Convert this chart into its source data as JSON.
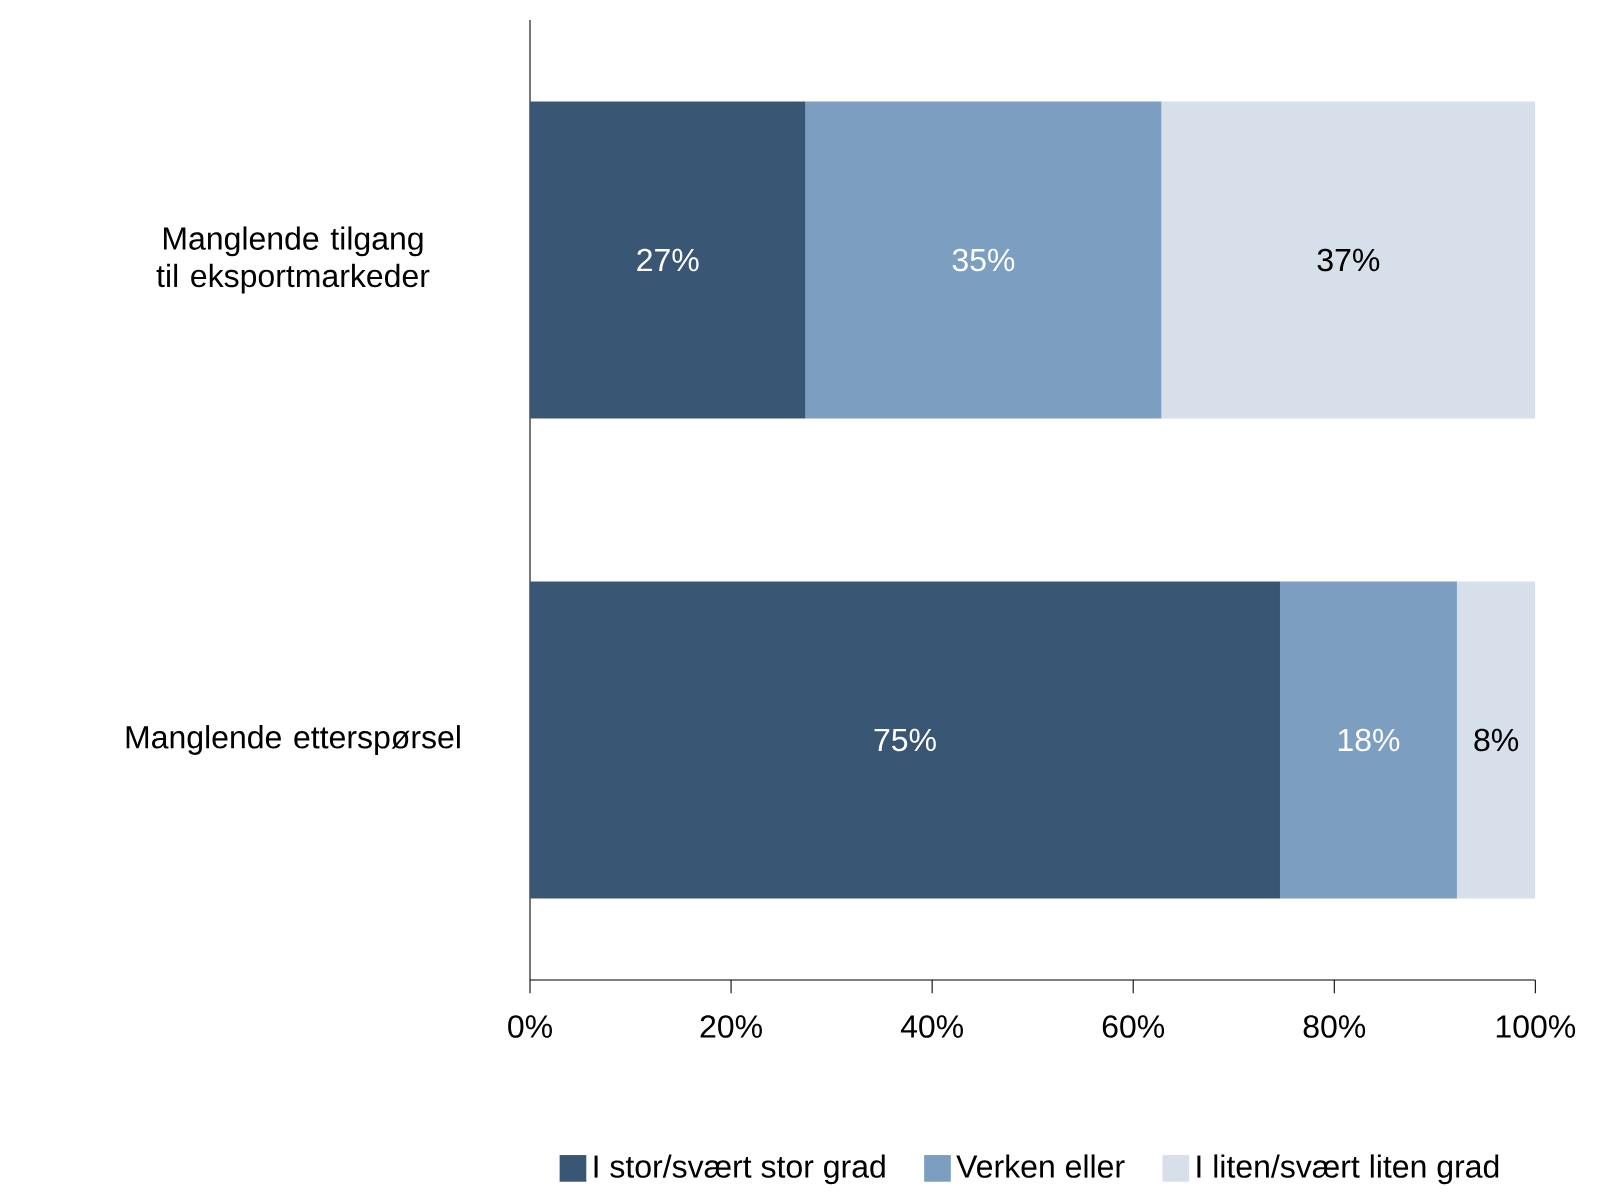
{
  "chart_data": {
    "type": "bar",
    "orientation": "horizontal",
    "stacked": true,
    "categories": [
      "Manglende tilgang til eksportmarkeder",
      "Manglende etterspørsel"
    ],
    "series": [
      {
        "name": "I stor/svært stor grad",
        "color": "#3a5675",
        "values": [
          27.4,
          74.6
        ],
        "value_labels": [
          "27%",
          "75%"
        ]
      },
      {
        "name": "Verken eller",
        "color": "#7b9ec1",
        "values": [
          35.4,
          17.6
        ],
        "value_labels": [
          "35%",
          "18%"
        ]
      },
      {
        "name": "I liten/svært liten grad",
        "color": "#d6dfea",
        "values": [
          37.2,
          7.8
        ],
        "value_labels": [
          "37%",
          "8%"
        ]
      }
    ],
    "xlim": [
      0,
      100
    ],
    "xticks": [
      {
        "value": 0,
        "label": "0%"
      },
      {
        "value": 20,
        "label": "20%"
      },
      {
        "value": 40,
        "label": "40%"
      },
      {
        "value": 60,
        "label": "60%"
      },
      {
        "value": 80,
        "label": "80%"
      },
      {
        "value": 100,
        "label": "100%"
      }
    ],
    "legend": "bottom",
    "grid": false
  }
}
